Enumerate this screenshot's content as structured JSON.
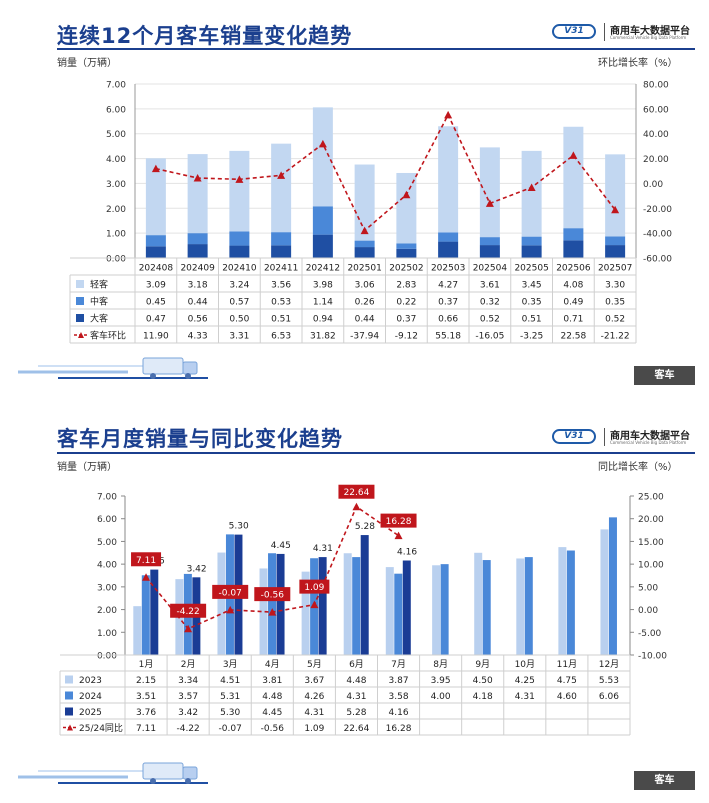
{
  "brand": {
    "badge": "V31",
    "name": "商用车大数据平台",
    "sub": "Commercial Vehicle Big Data Platform"
  },
  "panel1": {
    "title": "连续12个月客车销量变化趋势",
    "left_unit": "销量（万辆）",
    "right_unit": "环比增长率（%）",
    "tag": "客车"
  },
  "panel2": {
    "title": "客车月度销量与同比变化趋势",
    "left_unit": "销量（万辆）",
    "right_unit": "同比增长率（%）",
    "tag": "客车"
  },
  "chart_data": [
    {
      "type": "bar",
      "stacked": true,
      "categories": [
        "202408",
        "202409",
        "202410",
        "202411",
        "202412",
        "202501",
        "202502",
        "202503",
        "202504",
        "202505",
        "202506",
        "202507"
      ],
      "series": [
        {
          "name": "大客",
          "color": "#1f4fa3",
          "values": [
            0.47,
            0.56,
            0.5,
            0.51,
            0.94,
            0.44,
            0.37,
            0.66,
            0.52,
            0.51,
            0.71,
            0.52
          ]
        },
        {
          "name": "中客",
          "color": "#4a88d8",
          "values": [
            0.45,
            0.44,
            0.57,
            0.53,
            1.14,
            0.26,
            0.22,
            0.37,
            0.32,
            0.35,
            0.49,
            0.35
          ]
        },
        {
          "name": "轻客",
          "color": "#c2d7f1",
          "values": [
            3.09,
            3.18,
            3.24,
            3.56,
            3.98,
            3.06,
            2.83,
            4.27,
            3.61,
            3.45,
            4.08,
            3.3
          ]
        }
      ],
      "line": {
        "name": "客车环比",
        "color": "#c0161c",
        "values": [
          11.9,
          4.33,
          3.31,
          6.53,
          31.82,
          -37.94,
          -9.12,
          55.18,
          -16.05,
          -3.25,
          22.58,
          -21.22
        ]
      },
      "table_order": [
        "轻客",
        "中客",
        "大客",
        "客车环比"
      ],
      "y_left": {
        "min": 0,
        "max": 7,
        "ticks": [
          "0.00",
          "1.00",
          "2.00",
          "3.00",
          "4.00",
          "5.00",
          "6.00",
          "7.00"
        ]
      },
      "y_right": {
        "min": -60,
        "max": 80,
        "ticks": [
          "-60.00",
          "-40.00",
          "-20.00",
          "0.00",
          "20.00",
          "40.00",
          "60.00",
          "80.00"
        ]
      },
      "grid": true
    },
    {
      "type": "bar",
      "categories": [
        "1月",
        "2月",
        "3月",
        "4月",
        "5月",
        "6月",
        "7月",
        "8月",
        "9月",
        "10月",
        "11月",
        "12月"
      ],
      "series": [
        {
          "name": "2023",
          "color": "#b9d0ef",
          "values": [
            2.15,
            3.34,
            4.51,
            3.81,
            3.67,
            4.48,
            3.87,
            3.95,
            4.5,
            4.25,
            4.75,
            5.53
          ]
        },
        {
          "name": "2024",
          "color": "#4a88d8",
          "values": [
            3.51,
            3.57,
            5.31,
            4.48,
            4.26,
            4.31,
            3.58,
            4.0,
            4.18,
            4.31,
            4.6,
            6.06
          ]
        },
        {
          "name": "2025",
          "color": "#1a3c95",
          "values": [
            3.76,
            3.42,
            5.3,
            4.45,
            4.31,
            5.28,
            4.16,
            null,
            null,
            null,
            null,
            null
          ]
        }
      ],
      "data_labels_2025": [
        "3.76",
        "3.42",
        "5.30",
        "4.45",
        "4.31",
        "5.28",
        "4.16"
      ],
      "line": {
        "name": "25/24同比",
        "color": "#c0161c",
        "values": [
          7.11,
          -4.22,
          -0.07,
          -0.56,
          1.09,
          22.64,
          16.28
        ],
        "labels": [
          "7.11",
          "-4.22",
          "-0.07",
          "-0.56",
          "1.09",
          "22.64",
          "16.28"
        ]
      },
      "y_left": {
        "min": 0,
        "max": 7,
        "ticks": [
          "0.00",
          "1.00",
          "2.00",
          "3.00",
          "4.00",
          "5.00",
          "6.00",
          "7.00"
        ]
      },
      "y_right": {
        "min": -10,
        "max": 25,
        "ticks": [
          "-10.00",
          "-5.00",
          "0.00",
          "5.00",
          "10.00",
          "15.00",
          "20.00",
          "25.00"
        ]
      },
      "grid": false
    }
  ]
}
